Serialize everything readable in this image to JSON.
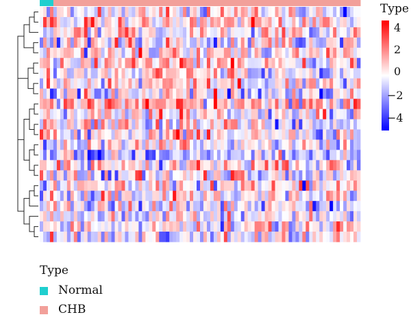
{
  "chart_data": {
    "type": "heatmap",
    "color_scale": {
      "title": "Type",
      "ticks": [
        "4",
        "2",
        "0",
        "−2",
        "−4"
      ],
      "range": [
        -4.5,
        4.5
      ],
      "colors": [
        "#0000ff",
        "#ffffff",
        "#ff0000"
      ]
    },
    "annotation": {
      "title": "Type",
      "groups": [
        {
          "name": "Normal",
          "color": "#1fcfcf",
          "columns": 4
        },
        {
          "name": "CHB",
          "color": "#f2a09a",
          "columns": 90
        }
      ]
    },
    "n_rows": 23,
    "n_columns": 94,
    "row_dendrogram": true,
    "seed": 4271
  }
}
